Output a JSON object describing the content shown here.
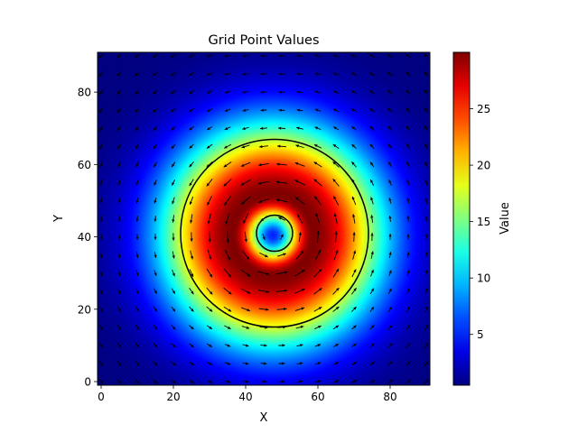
{
  "chart_data": {
    "type": "heatmap",
    "title": "Grid Point Values",
    "xlabel": "X",
    "ylabel": "Y",
    "xlim": [
      -1,
      91
    ],
    "ylim": [
      -1,
      91
    ],
    "xticks": [
      0,
      20,
      40,
      60,
      80
    ],
    "yticks": [
      0,
      20,
      40,
      60,
      80
    ],
    "grid": false,
    "colormap": "jet",
    "colorbar": {
      "label": "Value",
      "range": [
        0.5,
        30
      ],
      "ticks": [
        5,
        10,
        15,
        20,
        25
      ]
    },
    "field": {
      "center": [
        48,
        41
      ],
      "peak_radius": 11,
      "peak_value": 30,
      "min_value": 0.5,
      "center_value": 5
    },
    "contours": [
      {
        "center": [
          48,
          41
        ],
        "radius": 5
      },
      {
        "center": [
          48,
          41
        ],
        "radius": 26
      }
    ],
    "vectors": {
      "grid_spacing": 5,
      "pattern": "counter-clockwise rotation about center",
      "color": "#000000"
    }
  }
}
